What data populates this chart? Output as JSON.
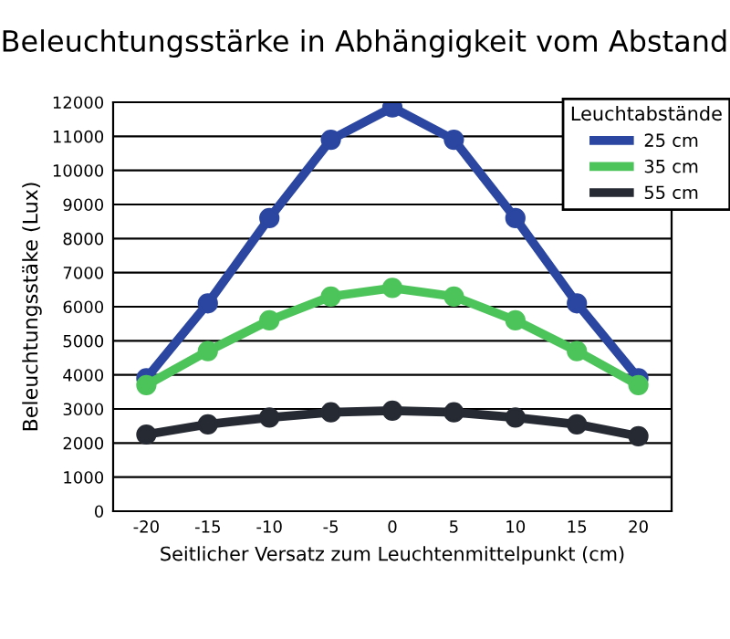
{
  "chart_data": {
    "type": "line",
    "title": "Beleuchtungsstärke in Abhängigkeit vom Abstand",
    "xlabel": "Seitlicher Versatz zum Leuchtenmittelpunkt (cm)",
    "ylabel": "Beleuchtungsstäke (Lux)",
    "legend_title": "Leuchtabstände",
    "x": [
      -20,
      -15,
      -10,
      -5,
      0,
      5,
      10,
      15,
      20
    ],
    "series": [
      {
        "name": "25 cm",
        "color": "#2a46a0",
        "values": [
          3900,
          6100,
          8600,
          10900,
          11850,
          10900,
          8600,
          6100,
          3900
        ]
      },
      {
        "name": "35 cm",
        "color": "#4cc45a",
        "values": [
          3700,
          4700,
          5600,
          6300,
          6550,
          6300,
          5600,
          4700,
          3700
        ]
      },
      {
        "name": "55 cm",
        "color": "#262a33",
        "values": [
          2250,
          2550,
          2750,
          2900,
          2950,
          2900,
          2750,
          2550,
          2200
        ]
      }
    ],
    "xlim": [
      -22.7,
      22.7
    ],
    "xticks": [
      -20,
      -15,
      -10,
      -5,
      0,
      5,
      10,
      15,
      20
    ],
    "ylim": [
      0,
      12000
    ],
    "yticks": [
      0,
      1000,
      2000,
      3000,
      4000,
      5000,
      6000,
      7000,
      8000,
      9000,
      10000,
      11000,
      12000
    ],
    "grid": "y",
    "legend": "top right",
    "marker": "circle",
    "line_style": "solid"
  }
}
